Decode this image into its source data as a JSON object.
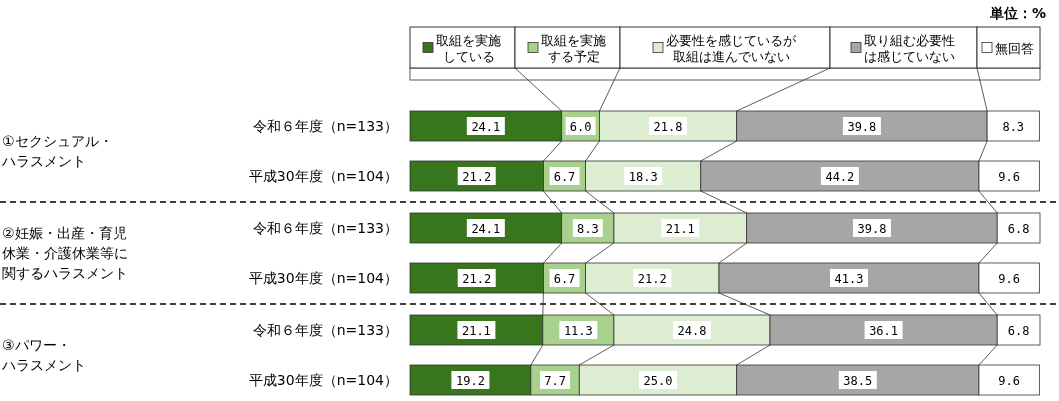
{
  "chart_data": {
    "type": "bar",
    "orientation": "horizontal",
    "stacked": true,
    "legend": "top",
    "categories": [
      "令和６年度（n=133）",
      "平成30年度（n=104）",
      "令和６年度（n=133）",
      "平成30年度（n=104）",
      "令和６年度（n=133）",
      "平成30年度（n=104）"
    ],
    "annotations": [
      "単位：%",
      "①セクシュアル・ハラスメント",
      "②妊娠・出産・育児休業・介護休業等に関するハラスメント",
      "③パワー・ハラスメント"
    ],
    "series": [
      {
        "name": "取組を実施している",
        "color": "#38761d",
        "values": [
          24.1,
          21.2,
          24.1,
          21.2,
          21.1,
          19.2
        ],
        "value_labels": [
          "24.1",
          "21.2",
          "24.1",
          "21.2",
          "21.1",
          "19.2"
        ]
      },
      {
        "name": "取組を実施する予定",
        "color": "#a9d18e",
        "values": [
          6.0,
          6.7,
          8.3,
          6.7,
          11.3,
          7.7
        ],
        "value_labels": [
          "6.0",
          "6.7",
          "8.3",
          "6.7",
          "11.3",
          "7.7"
        ]
      },
      {
        "name": "必要性を感じているが取組は進んでいない",
        "color": "#dcedd2",
        "values": [
          21.8,
          18.3,
          21.1,
          21.2,
          24.8,
          25.0
        ],
        "value_labels": [
          "21.8",
          "18.3",
          "21.1",
          "21.2",
          "24.8",
          "25.0"
        ]
      },
      {
        "name": "取り組む必要性は感じていない",
        "color": "#a6a6a6",
        "values": [
          39.8,
          44.2,
          39.8,
          41.3,
          36.1,
          38.5
        ],
        "value_labels": [
          "39.8",
          "44.2",
          "39.8",
          "41.3",
          "36.1",
          "38.5"
        ]
      },
      {
        "name": "無回答",
        "color": "#ffffff",
        "values": [
          8.3,
          9.6,
          6.8,
          9.6,
          6.8,
          9.6
        ],
        "value_labels": [
          "8.3",
          "9.6",
          "6.8",
          "9.6",
          "6.8",
          "9.6"
        ]
      }
    ]
  }
}
